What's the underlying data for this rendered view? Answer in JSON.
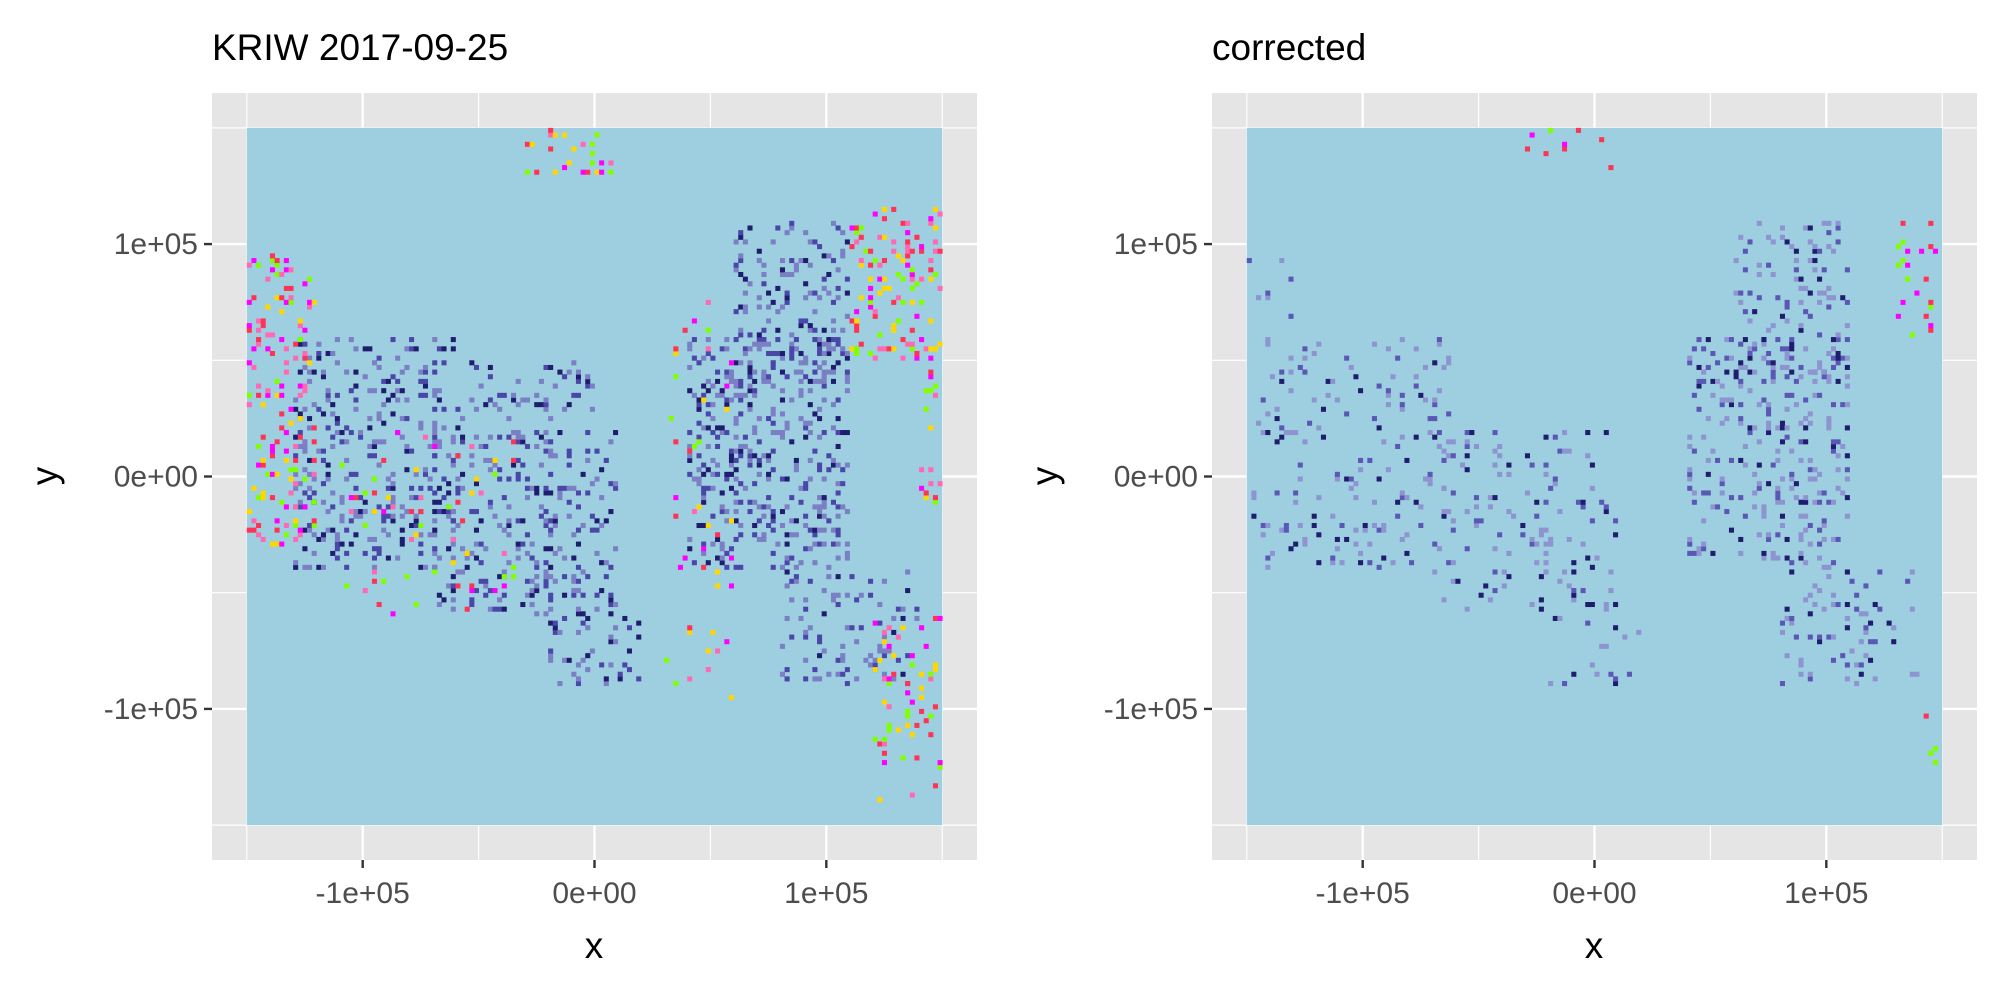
{
  "chart_data": [
    {
      "type": "heatmap",
      "title": "KRIW 2017-09-25",
      "xlabel": "x",
      "ylabel": "y",
      "xlim": [
        -165000,
        165000
      ],
      "ylim": [
        -165000,
        165000
      ],
      "raster_extent": {
        "x": [
          -150000,
          150000
        ],
        "y": [
          -150000,
          150000
        ]
      },
      "x_ticks": [
        {
          "value": -100000,
          "label": "-1e+05"
        },
        {
          "value": 0,
          "label": "0e+00"
        },
        {
          "value": 100000,
          "label": "1e+05"
        }
      ],
      "y_ticks": [
        {
          "value": 100000,
          "label": "1e+05"
        },
        {
          "value": 0,
          "label": "0e+00"
        },
        {
          "value": -100000,
          "label": "-1e+05"
        }
      ],
      "grid": true,
      "background_color": "#9ecfe0",
      "regions": [
        {
          "x": [
            40000,
            110000
          ],
          "y": [
            -40000,
            60000
          ],
          "density": 0.55
        },
        {
          "x": [
            -130000,
            -60000
          ],
          "y": [
            -40000,
            60000
          ],
          "density": 0.5
        },
        {
          "x": [
            -70000,
            10000
          ],
          "y": [
            -60000,
            20000
          ],
          "density": 0.45
        },
        {
          "x": [
            60000,
            110000
          ],
          "y": [
            40000,
            110000
          ],
          "density": 0.45
        },
        {
          "x": [
            -20000,
            20000
          ],
          "y": [
            -60000,
            -90000
          ],
          "density": 0.35
        },
        {
          "x": [
            80000,
            140000
          ],
          "y": [
            -90000,
            -40000
          ],
          "density": 0.3
        },
        {
          "x": [
            -60000,
            0
          ],
          "y": [
            20000,
            50000
          ],
          "density": 0.35
        }
      ],
      "clutter_regions": [
        {
          "x": [
            -150000,
            -120000
          ],
          "y": [
            -30000,
            95000
          ],
          "density": 0.4
        },
        {
          "x": [
            110000,
            150000
          ],
          "y": [
            50000,
            115000
          ],
          "density": 0.45
        },
        {
          "x": [
            120000,
            150000
          ],
          "y": [
            -140000,
            -60000
          ],
          "density": 0.35
        },
        {
          "x": [
            -30000,
            10000
          ],
          "y": [
            130000,
            150000
          ],
          "density": 0.35
        },
        {
          "x": [
            140000,
            150000
          ],
          "y": [
            -20000,
            60000
          ],
          "density": 0.3
        },
        {
          "x": [
            30000,
            60000
          ],
          "y": [
            -100000,
            80000
          ],
          "density": 0.08
        },
        {
          "x": [
            -110000,
            -30000
          ],
          "y": [
            -60000,
            20000
          ],
          "density": 0.12
        }
      ],
      "colors": {
        "faint": "#7b7fc4",
        "medium": "#4a47a8",
        "dark": "#1f1d6e",
        "clutter": [
          "#7fff00",
          "#ff00ff",
          "#ff3355",
          "#ffd700",
          "#ff69b4"
        ]
      },
      "seed": 7
    },
    {
      "type": "heatmap",
      "title": "corrected",
      "xlabel": "x",
      "ylabel": "y",
      "xlim": [
        -165000,
        165000
      ],
      "ylim": [
        -165000,
        165000
      ],
      "raster_extent": {
        "x": [
          -150000,
          150000
        ],
        "y": [
          -150000,
          150000
        ]
      },
      "x_ticks": [
        {
          "value": -100000,
          "label": "-1e+05"
        },
        {
          "value": 0,
          "label": "0e+00"
        },
        {
          "value": 100000,
          "label": "1e+05"
        }
      ],
      "y_ticks": [
        {
          "value": 100000,
          "label": "1e+05"
        },
        {
          "value": 0,
          "label": "0e+00"
        },
        {
          "value": -100000,
          "label": "-1e+05"
        }
      ],
      "grid": true,
      "background_color": "#9ecfe0",
      "regions": [
        {
          "x": [
            40000,
            110000
          ],
          "y": [
            -40000,
            60000
          ],
          "density": 0.4
        },
        {
          "x": [
            -130000,
            -60000
          ],
          "y": [
            -40000,
            60000
          ],
          "density": 0.22
        },
        {
          "x": [
            -70000,
            10000
          ],
          "y": [
            -60000,
            20000
          ],
          "density": 0.22
        },
        {
          "x": [
            60000,
            110000
          ],
          "y": [
            40000,
            110000
          ],
          "density": 0.35
        },
        {
          "x": [
            -20000,
            20000
          ],
          "y": [
            -60000,
            -90000
          ],
          "density": 0.15
        },
        {
          "x": [
            80000,
            140000
          ],
          "y": [
            -90000,
            -40000
          ],
          "density": 0.25
        },
        {
          "x": [
            -150000,
            -130000
          ],
          "y": [
            -40000,
            95000
          ],
          "density": 0.2
        }
      ],
      "clutter_regions": [
        {
          "x": [
            130000,
            150000
          ],
          "y": [
            60000,
            110000
          ],
          "density": 0.2
        },
        {
          "x": [
            -30000,
            10000
          ],
          "y": [
            130000,
            150000
          ],
          "density": 0.15
        },
        {
          "x": [
            140000,
            150000
          ],
          "y": [
            -130000,
            -100000
          ],
          "density": 0.15
        }
      ],
      "colors": {
        "faint": "#8e94cf",
        "medium": "#5a58b4",
        "dark": "#1f1d6e",
        "clutter": [
          "#7fff00",
          "#ff00ff",
          "#ff3355"
        ]
      },
      "seed": 11
    }
  ]
}
